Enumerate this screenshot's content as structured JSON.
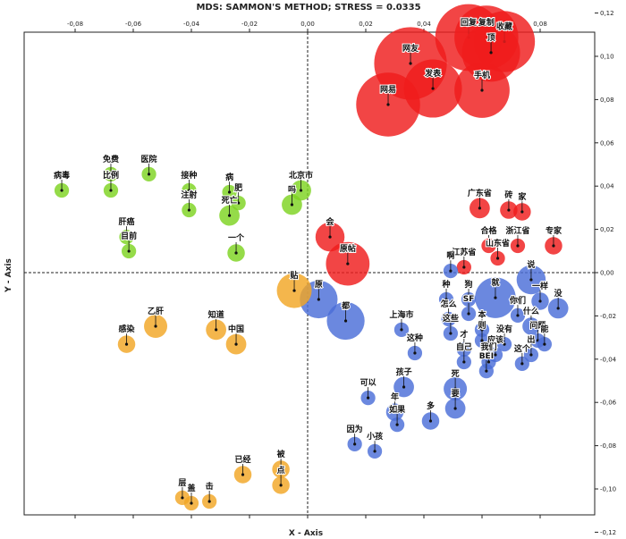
{
  "chart_data": {
    "type": "scatter",
    "title": "MDS: SAMMON'S METHOD; STRESS = 0.0335",
    "xlabel": "X - Axis",
    "ylabel": "Y - Axis",
    "xlim": [
      -0.1,
      0.1
    ],
    "ylim": [
      -0.12,
      0.12
    ],
    "x_ticks": [
      "-0,08",
      "-0,06",
      "-0,04",
      "-0,02",
      "0,00",
      "0,02",
      "0,04",
      "0,06",
      "0,08"
    ],
    "y_ticks": [
      "0,12",
      "0,10",
      "0,08",
      "0,06",
      "0,04",
      "0,02",
      "0,00",
      "-0,02",
      "-0,04",
      "-0,06",
      "-0,08",
      "-0,10",
      "-0,12"
    ],
    "grid": false,
    "zero_lines": "dashed",
    "colors": {
      "red": "#ef1c1c",
      "green": "#7ed321",
      "blue": "#4a6ed8",
      "orange": "#f2a624"
    },
    "points": [
      {
        "label": "网友",
        "x": 0.0354,
        "y": 0.0967,
        "size": 0.0125,
        "color": "red"
      },
      {
        "label": "回复",
        "x": 0.0554,
        "y": 0.1087,
        "size": 0.0115,
        "color": "red"
      },
      {
        "label": "复制",
        "x": 0.0615,
        "y": 0.1087,
        "size": 0.011,
        "color": "red"
      },
      {
        "label": "收藏",
        "x": 0.0677,
        "y": 0.1068,
        "size": 0.0105,
        "color": "red"
      },
      {
        "label": "顶",
        "x": 0.0631,
        "y": 0.1017,
        "size": 0.01,
        "color": "red"
      },
      {
        "label": "发表",
        "x": 0.0431,
        "y": 0.0851,
        "size": 0.01,
        "color": "red"
      },
      {
        "label": "手机",
        "x": 0.06,
        "y": 0.0843,
        "size": 0.0095,
        "color": "red"
      },
      {
        "label": "网易",
        "x": 0.0277,
        "y": 0.0777,
        "size": 0.011,
        "color": "red"
      },
      {
        "label": "会",
        "x": 0.0077,
        "y": 0.0165,
        "size": 0.005,
        "color": "red"
      },
      {
        "label": "原帖",
        "x": 0.0138,
        "y": 0.0041,
        "size": 0.0075,
        "color": "red"
      },
      {
        "label": "广东省",
        "x": 0.0592,
        "y": 0.0298,
        "size": 0.0035,
        "color": "red"
      },
      {
        "label": "砖",
        "x": 0.0692,
        "y": 0.0289,
        "size": 0.003,
        "color": "red"
      },
      {
        "label": "家",
        "x": 0.0738,
        "y": 0.0281,
        "size": 0.003,
        "color": "red"
      },
      {
        "label": "合格",
        "x": 0.0623,
        "y": 0.0124,
        "size": 0.0025,
        "color": "red"
      },
      {
        "label": "浙江省",
        "x": 0.0723,
        "y": 0.0124,
        "size": 0.0025,
        "color": "red"
      },
      {
        "label": "专家",
        "x": 0.0846,
        "y": 0.0124,
        "size": 0.003,
        "color": "red"
      },
      {
        "label": "山东省",
        "x": 0.0654,
        "y": 0.0066,
        "size": 0.0025,
        "color": "red"
      },
      {
        "label": "江苏省",
        "x": 0.0538,
        "y": 0.0025,
        "size": 0.0025,
        "color": "red"
      },
      {
        "label": "病毒",
        "x": -0.0846,
        "y": 0.038,
        "size": 0.0025,
        "color": "green"
      },
      {
        "label": "免费",
        "x": -0.0677,
        "y": 0.0455,
        "size": 0.0025,
        "color": "green"
      },
      {
        "label": "比例",
        "x": -0.0677,
        "y": 0.038,
        "size": 0.0025,
        "color": "green"
      },
      {
        "label": "医院",
        "x": -0.0546,
        "y": 0.0455,
        "size": 0.0025,
        "color": "green"
      },
      {
        "label": "接种",
        "x": -0.0408,
        "y": 0.038,
        "size": 0.0025,
        "color": "green"
      },
      {
        "label": "注射",
        "x": -0.0408,
        "y": 0.0289,
        "size": 0.0025,
        "color": "green"
      },
      {
        "label": "病",
        "x": -0.0269,
        "y": 0.0372,
        "size": 0.0025,
        "color": "green"
      },
      {
        "label": "死亡",
        "x": -0.0269,
        "y": 0.0264,
        "size": 0.0035,
        "color": "green"
      },
      {
        "label": "肥",
        "x": -0.0238,
        "y": 0.0322,
        "size": 0.0025,
        "color": "green"
      },
      {
        "label": "北京市",
        "x": -0.0023,
        "y": 0.038,
        "size": 0.0035,
        "color": "green"
      },
      {
        "label": "吗",
        "x": -0.0054,
        "y": 0.0314,
        "size": 0.0035,
        "color": "green"
      },
      {
        "label": "肝癌",
        "x": -0.0623,
        "y": 0.0165,
        "size": 0.0025,
        "color": "green"
      },
      {
        "label": "目前",
        "x": -0.0615,
        "y": 0.0099,
        "size": 0.0025,
        "color": "green"
      },
      {
        "label": "一个",
        "x": -0.0246,
        "y": 0.0091,
        "size": 0.003,
        "color": "green"
      },
      {
        "label": "贴",
        "x": -0.0046,
        "y": -0.0083,
        "size": 0.006,
        "color": "orange"
      },
      {
        "label": "乙肝",
        "x": -0.0523,
        "y": -0.0248,
        "size": 0.004,
        "color": "orange"
      },
      {
        "label": "感染",
        "x": -0.0623,
        "y": -0.0331,
        "size": 0.003,
        "color": "orange"
      },
      {
        "label": "知道",
        "x": -0.0315,
        "y": -0.0264,
        "size": 0.0035,
        "color": "orange"
      },
      {
        "label": "中国",
        "x": -0.0246,
        "y": -0.0331,
        "size": 0.0035,
        "color": "orange"
      },
      {
        "label": "已经",
        "x": -0.0223,
        "y": -0.0934,
        "size": 0.003,
        "color": "orange"
      },
      {
        "label": "被",
        "x": -0.0092,
        "y": -0.0909,
        "size": 0.003,
        "color": "orange"
      },
      {
        "label": "点",
        "x": -0.0092,
        "y": -0.0983,
        "size": 0.003,
        "color": "orange"
      },
      {
        "label": "层",
        "x": -0.0431,
        "y": -0.1041,
        "size": 0.0025,
        "color": "orange"
      },
      {
        "label": "盖",
        "x": -0.04,
        "y": -0.1066,
        "size": 0.0025,
        "color": "orange"
      },
      {
        "label": "击",
        "x": -0.0338,
        "y": -0.1058,
        "size": 0.0025,
        "color": "orange"
      },
      {
        "label": "原",
        "x": 0.0038,
        "y": -0.0124,
        "size": 0.0065,
        "color": "blue"
      },
      {
        "label": "都",
        "x": 0.0131,
        "y": -0.0223,
        "size": 0.0065,
        "color": "blue"
      },
      {
        "label": "啊",
        "x": 0.0492,
        "y": 0.0008,
        "size": 0.0025,
        "color": "blue"
      },
      {
        "label": "种",
        "x": 0.0477,
        "y": -0.0124,
        "size": 0.0025,
        "color": "blue"
      },
      {
        "label": "怎么",
        "x": 0.0485,
        "y": -0.0215,
        "size": 0.0025,
        "color": "blue"
      },
      {
        "label": "狗",
        "x": 0.0554,
        "y": -0.0124,
        "size": 0.0025,
        "color": "blue"
      },
      {
        "label": "SF",
        "x": 0.0554,
        "y": -0.019,
        "size": 0.0025,
        "color": "blue"
      },
      {
        "label": "就",
        "x": 0.0646,
        "y": -0.0116,
        "size": 0.007,
        "color": "blue"
      },
      {
        "label": "说",
        "x": 0.0769,
        "y": -0.0033,
        "size": 0.005,
        "color": "blue"
      },
      {
        "label": "一样",
        "x": 0.08,
        "y": -0.0132,
        "size": 0.003,
        "color": "blue"
      },
      {
        "label": "没",
        "x": 0.0862,
        "y": -0.0165,
        "size": 0.0035,
        "color": "blue"
      },
      {
        "label": "你们",
        "x": 0.0723,
        "y": -0.0198,
        "size": 0.0025,
        "color": "blue"
      },
      {
        "label": "什么",
        "x": 0.0769,
        "y": -0.0248,
        "size": 0.003,
        "color": "blue"
      },
      {
        "label": "问题",
        "x": 0.0792,
        "y": -0.0314,
        "size": 0.0025,
        "color": "blue"
      },
      {
        "label": "能",
        "x": 0.0815,
        "y": -0.0331,
        "size": 0.0025,
        "color": "blue"
      },
      {
        "label": "上海市",
        "x": 0.0323,
        "y": -0.0264,
        "size": 0.0025,
        "color": "blue"
      },
      {
        "label": "这些",
        "x": 0.0492,
        "y": -0.0281,
        "size": 0.0025,
        "color": "blue"
      },
      {
        "label": "本",
        "x": 0.06,
        "y": -0.0264,
        "size": 0.0025,
        "color": "blue"
      },
      {
        "label": "则",
        "x": 0.06,
        "y": -0.0314,
        "size": 0.0025,
        "color": "blue"
      },
      {
        "label": "这种",
        "x": 0.0369,
        "y": -0.0372,
        "size": 0.0025,
        "color": "blue"
      },
      {
        "label": "才",
        "x": 0.0538,
        "y": -0.0355,
        "size": 0.0025,
        "color": "blue"
      },
      {
        "label": "自己",
        "x": 0.0538,
        "y": -0.0413,
        "size": 0.0025,
        "color": "blue"
      },
      {
        "label": "没有",
        "x": 0.0677,
        "y": -0.0331,
        "size": 0.0025,
        "color": "blue"
      },
      {
        "label": "应该",
        "x": 0.0646,
        "y": -0.038,
        "size": 0.0025,
        "color": "blue"
      },
      {
        "label": "我们",
        "x": 0.0623,
        "y": -0.0413,
        "size": 0.0025,
        "color": "blue"
      },
      {
        "label": "出",
        "x": 0.0769,
        "y": -0.038,
        "size": 0.0025,
        "color": "blue"
      },
      {
        "label": "这个",
        "x": 0.0738,
        "y": -0.0421,
        "size": 0.0025,
        "color": "blue"
      },
      {
        "label": "BEI",
        "x": 0.0615,
        "y": -0.0455,
        "size": 0.0025,
        "color": "blue"
      },
      {
        "label": "孩子",
        "x": 0.0331,
        "y": -0.0529,
        "size": 0.0035,
        "color": "blue"
      },
      {
        "label": "死",
        "x": 0.0508,
        "y": -0.0537,
        "size": 0.004,
        "color": "blue"
      },
      {
        "label": "可以",
        "x": 0.0208,
        "y": -0.0579,
        "size": 0.0025,
        "color": "blue"
      },
      {
        "label": "年",
        "x": 0.03,
        "y": -0.0645,
        "size": 0.003,
        "color": "blue"
      },
      {
        "label": "要",
        "x": 0.0508,
        "y": -0.0628,
        "size": 0.0035,
        "color": "blue"
      },
      {
        "label": "多",
        "x": 0.0423,
        "y": -0.0686,
        "size": 0.003,
        "color": "blue"
      },
      {
        "label": "如果",
        "x": 0.0308,
        "y": -0.0703,
        "size": 0.0025,
        "color": "blue"
      },
      {
        "label": "因为",
        "x": 0.0162,
        "y": -0.0793,
        "size": 0.0025,
        "color": "blue"
      },
      {
        "label": "小孩",
        "x": 0.0231,
        "y": -0.0826,
        "size": 0.0025,
        "color": "blue"
      }
    ]
  }
}
